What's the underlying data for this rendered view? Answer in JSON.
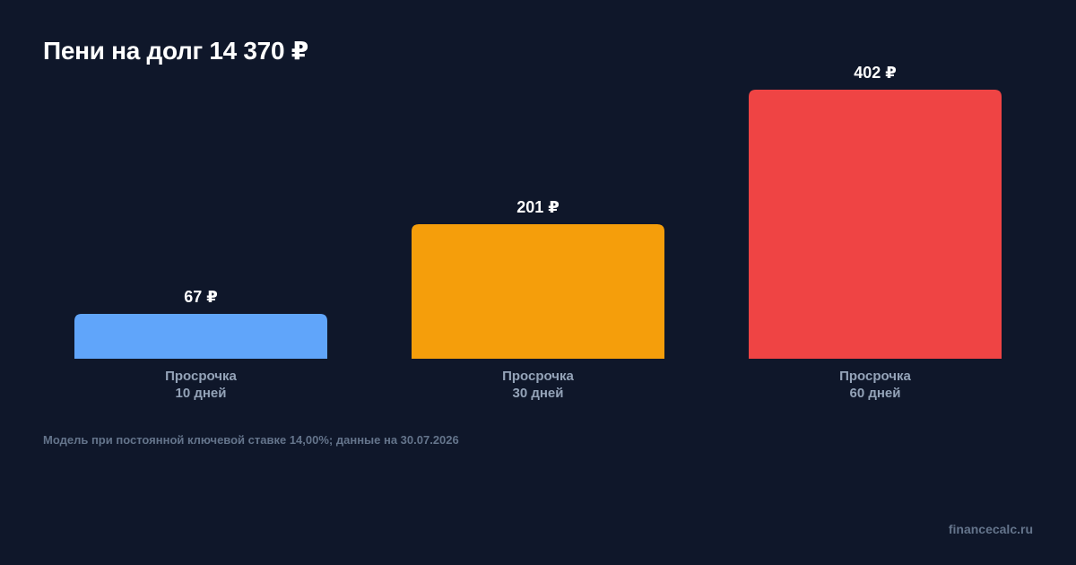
{
  "title": "Пени на долг 14 370 ₽",
  "footnote": "Модель при постоянной ключевой ставке 14,00%; данные на 30.07.2026",
  "source": "financecalc.ru",
  "chart_data": {
    "type": "bar",
    "title": "Пени на долг 14 370 ₽",
    "xlabel": "",
    "ylabel": "",
    "grid": false,
    "categories": [
      [
        "Просрочка",
        "10 дней"
      ],
      [
        "Просрочка",
        "30 дней"
      ],
      [
        "Просрочка",
        "60 дней"
      ]
    ],
    "values": [
      67,
      201,
      402
    ],
    "value_labels": [
      "67 ₽",
      "201 ₽",
      "402 ₽"
    ],
    "colors": [
      "#60a5fa",
      "#f59e0b",
      "#ef4444"
    ],
    "ylim": [
      0,
      402
    ]
  }
}
